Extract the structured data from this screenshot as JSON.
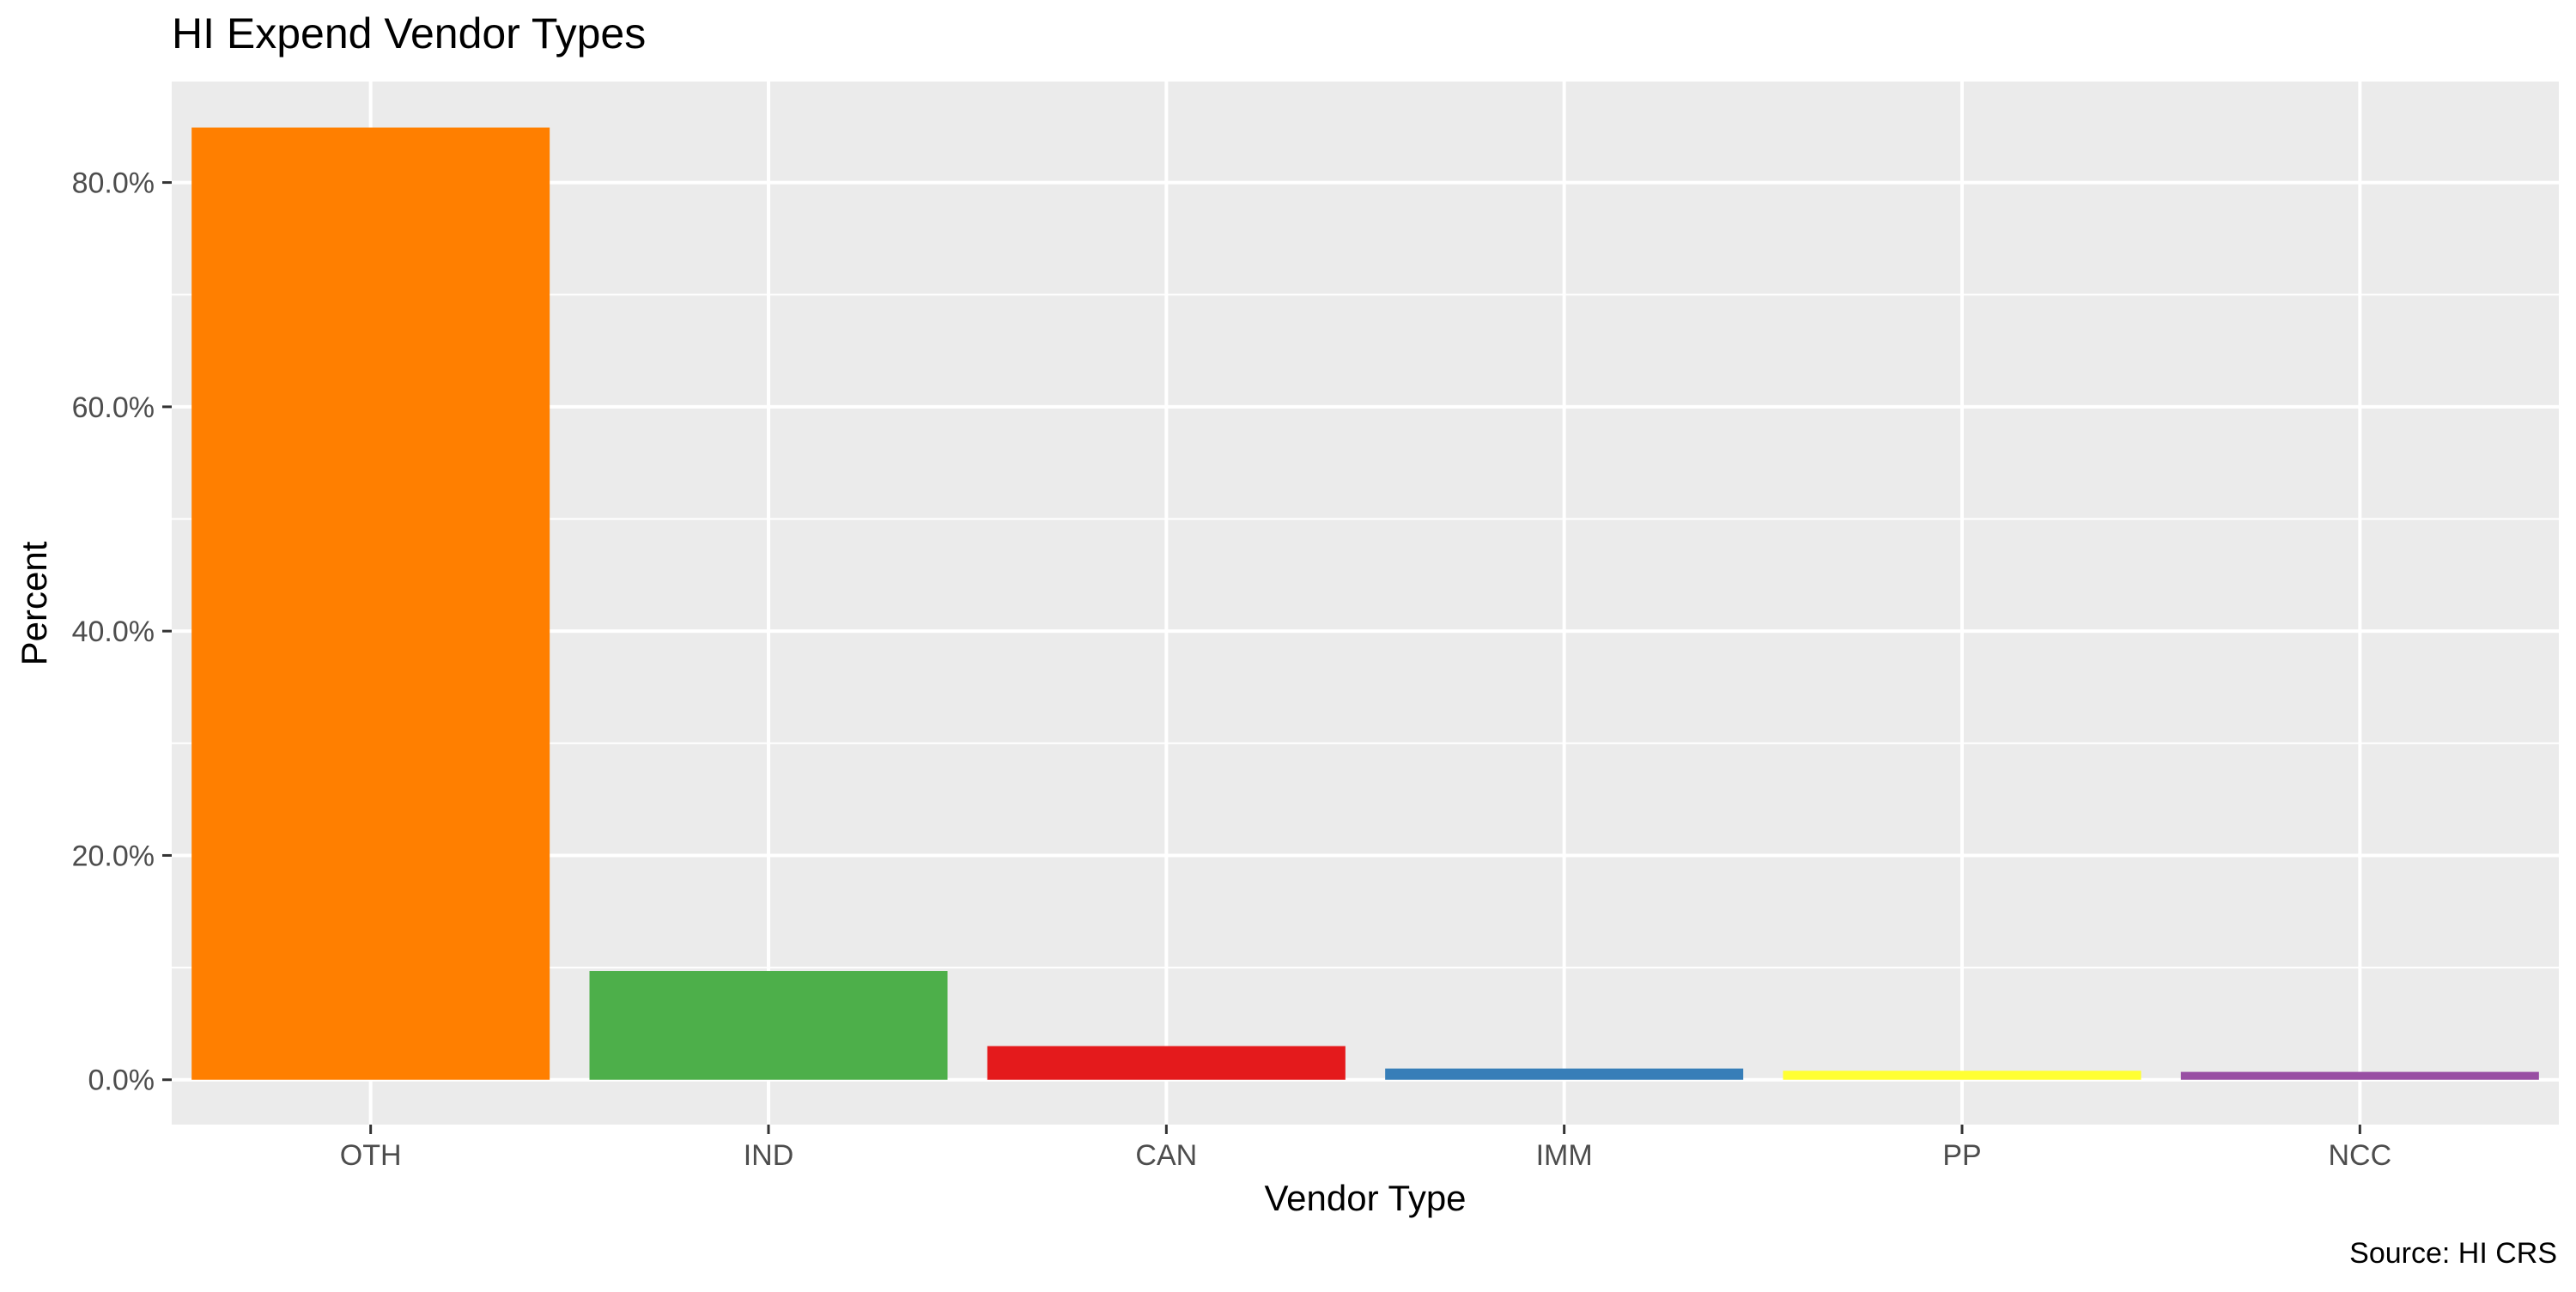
{
  "chart_data": {
    "type": "bar",
    "title": "HI Expend Vendor Types",
    "xlabel": "Vendor Type",
    "ylabel": "Percent",
    "caption": "Source: HI CRS",
    "categories": [
      "OTH",
      "IND",
      "CAN",
      "IMM",
      "PP",
      "NCC"
    ],
    "values": [
      0.849,
      0.097,
      0.03,
      0.01,
      0.008,
      0.007
    ],
    "colors": [
      "#FF7F00",
      "#4DAF4A",
      "#E41A1C",
      "#377EB8",
      "#FFFF33",
      "#984EA3"
    ],
    "ylim": [
      -0.04,
      0.89
    ],
    "y_ticks": [
      0,
      0.2,
      0.4,
      0.6,
      0.8
    ],
    "y_tick_labels": [
      "0.0%",
      "20.0%",
      "40.0%",
      "60.0%",
      "80.0%"
    ],
    "y_minor_ticks": [
      0.1,
      0.3,
      0.5,
      0.7
    ],
    "grid": true,
    "legend": "none"
  }
}
